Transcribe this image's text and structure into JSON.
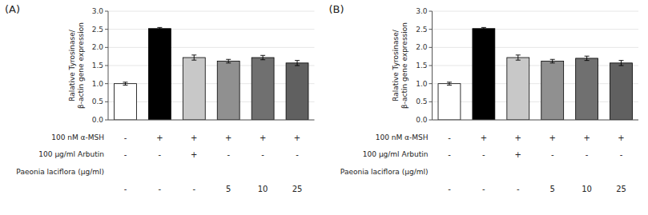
{
  "chart_data": [
    {
      "type": "bar",
      "title": "(A)",
      "ylabel": "Ralative Tyrosinase/\nβ-actin gene expression",
      "categories": [
        null,
        null,
        null,
        null,
        null,
        null
      ],
      "values": [
        1.0,
        2.52,
        1.72,
        1.62,
        1.72,
        1.57
      ],
      "errors": [
        0.04,
        0.03,
        0.07,
        0.05,
        0.06,
        0.07
      ],
      "colors": [
        "#ffffff",
        "#000000",
        "#c8c8c8",
        "#909090",
        "#707070",
        "#606060"
      ],
      "ylim": [
        0.0,
        3.0
      ],
      "yticks": [
        {
          "value": 0.0,
          "label": "0.0"
        },
        0.5,
        {
          "value": 1.0,
          "label": "1.0"
        },
        1.5,
        {
          "value": 2.0,
          "label": "2.0"
        },
        2.5,
        {
          "value": 3.0,
          "label": "3.0"
        }
      ],
      "annotations": [
        {
          "label": "100 nM α-MSH",
          "values": [
            "-",
            "+",
            "+",
            "+",
            "+",
            "+"
          ]
        },
        {
          "label": "100 μg/ml  Arbutin",
          "values": [
            "-",
            "-",
            "+",
            "-",
            "-",
            "-"
          ]
        },
        {
          "label": "Paeonia laciflora (μg/ml)",
          "values": [
            "-",
            "-",
            "-",
            "5",
            "10",
            "25"
          ]
        }
      ]
    },
    {
      "type": "bar",
      "title": "(B)",
      "ylabel": "Ralative Tyrosinase/\nβ-actin gene expression",
      "categories": [
        null,
        null,
        null,
        null,
        null,
        null
      ],
      "values": [
        1.0,
        2.52,
        1.72,
        1.62,
        1.7,
        1.57
      ],
      "errors": [
        0.04,
        0.03,
        0.07,
        0.05,
        0.06,
        0.07
      ],
      "colors": [
        "#ffffff",
        "#000000",
        "#c8c8c8",
        "#909090",
        "#707070",
        "#606060"
      ],
      "ylim": [
        0.0,
        3.0
      ],
      "yticks": [
        {
          "value": 0.0,
          "label": "0.0"
        },
        0.5,
        {
          "value": 1.0,
          "label": "1.0"
        },
        1.5,
        {
          "value": 2.0,
          "label": "2.0"
        },
        2.5,
        {
          "value": 3.0,
          "label": "3.0"
        }
      ],
      "annotations": [
        {
          "label": "100 nM α-MSH",
          "values": [
            "-",
            "+",
            "+",
            "+",
            "+",
            "+"
          ]
        },
        {
          "label": "100 μg/ml  Arbutin",
          "values": [
            "-",
            "-",
            "+",
            "-",
            "-",
            "-"
          ]
        },
        {
          "label": "Paeonia laciflora (μg/ml)",
          "values": [
            "-",
            "-",
            "-",
            "5",
            "10",
            "25"
          ]
        }
      ]
    }
  ]
}
